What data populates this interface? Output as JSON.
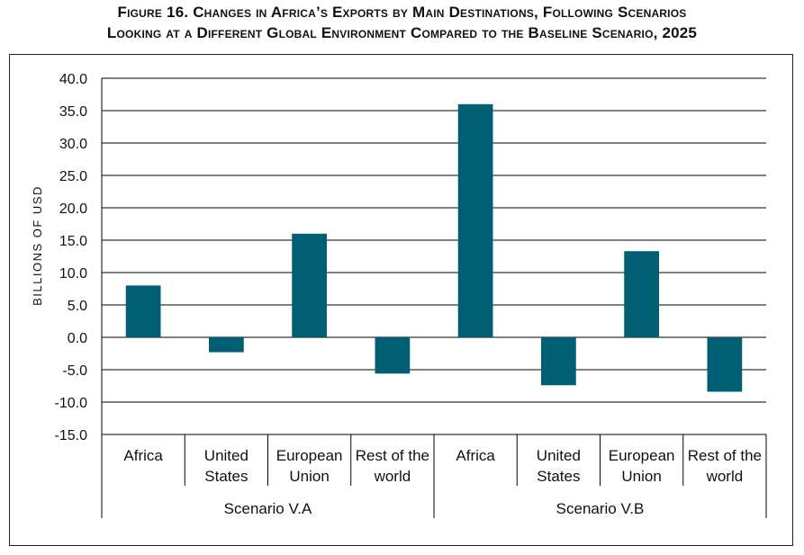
{
  "title_line1": "Figure 16. Changes in Africa’s Exports by Main Destinations, Following Scenarios",
  "title_line2": "Looking at a Different Global Environment Compared to the Baseline Scenario, 2025",
  "colors": {
    "bar": "#005f73",
    "grid": "#000000",
    "axis": "#000000"
  },
  "chart_data": {
    "type": "bar",
    "ylabel": "BILLIONS OF USD",
    "ylim": [
      -15,
      40
    ],
    "ytick_step": 5,
    "yticks": [
      "40.0",
      "35.0",
      "30.0",
      "25.0",
      "20.0",
      "15.0",
      "10.0",
      "5.0",
      "0.0",
      "-5.0",
      "-10.0",
      "-15.0"
    ],
    "grid": true,
    "legend": "none",
    "groups": [
      {
        "label": "Scenario V.A",
        "categories": [
          [
            "Africa"
          ],
          [
            "United",
            "States"
          ],
          [
            "European",
            "Union"
          ],
          [
            "Rest of the",
            "world"
          ]
        ],
        "values": [
          8.0,
          -2.3,
          16.0,
          -5.6
        ]
      },
      {
        "label": "Scenario V.B",
        "categories": [
          [
            "Africa"
          ],
          [
            "United",
            "States"
          ],
          [
            "European",
            "Union"
          ],
          [
            "Rest of the",
            "world"
          ]
        ],
        "values": [
          36.0,
          -7.4,
          13.3,
          -8.4
        ]
      }
    ]
  }
}
